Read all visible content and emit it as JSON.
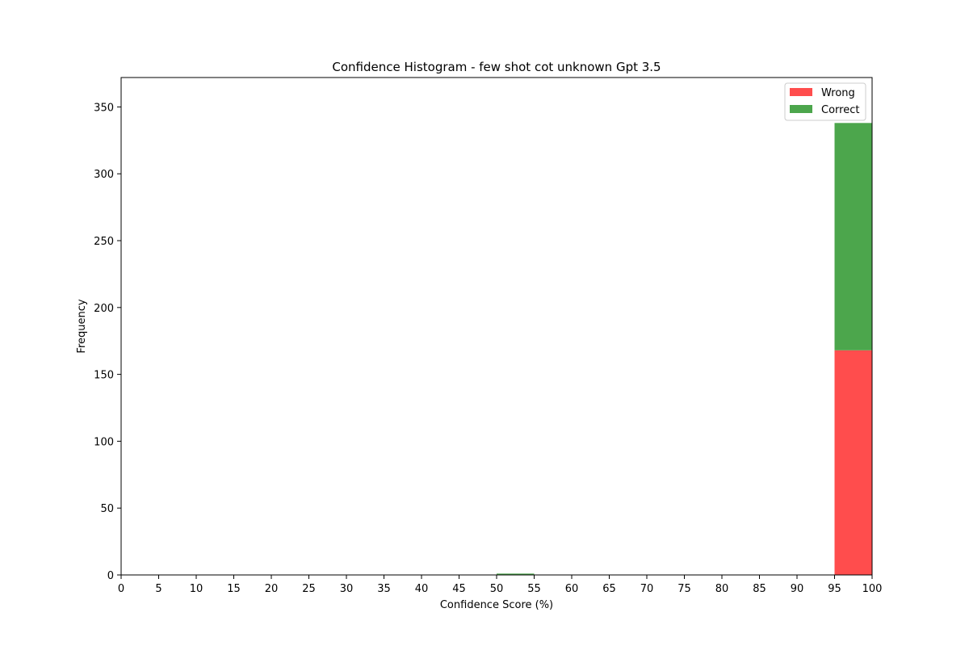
{
  "chart_data": {
    "type": "bar",
    "stacked": true,
    "title": "Confidence Histogram - few shot cot unknown Gpt 3.5",
    "xlabel": "Confidence Score (%)",
    "ylabel": "Frequency",
    "xlim": [
      0,
      100
    ],
    "ylim": [
      0,
      372
    ],
    "bin_width": 5,
    "x_ticks": [
      0,
      5,
      10,
      15,
      20,
      25,
      30,
      35,
      40,
      45,
      50,
      55,
      60,
      65,
      70,
      75,
      80,
      85,
      90,
      95,
      100
    ],
    "y_ticks": [
      0,
      50,
      100,
      150,
      200,
      250,
      300,
      350
    ],
    "bin_starts": [
      0,
      5,
      10,
      15,
      20,
      25,
      30,
      35,
      40,
      45,
      50,
      55,
      60,
      65,
      70,
      75,
      80,
      85,
      90,
      95
    ],
    "series": [
      {
        "name": "Wrong",
        "color": "#ff4d4d",
        "values": [
          0,
          0,
          0,
          0,
          0,
          0,
          0,
          0,
          0,
          0,
          0,
          0,
          0,
          0,
          0,
          0,
          0,
          0,
          0,
          168
        ]
      },
      {
        "name": "Correct",
        "color": "#4ca64c",
        "values": [
          0,
          0,
          0,
          0,
          0,
          0,
          0,
          0,
          0,
          0,
          1,
          0,
          0,
          0,
          0,
          0,
          0,
          0,
          0,
          170
        ]
      }
    ],
    "legend_position": "top-right",
    "grid": false
  }
}
